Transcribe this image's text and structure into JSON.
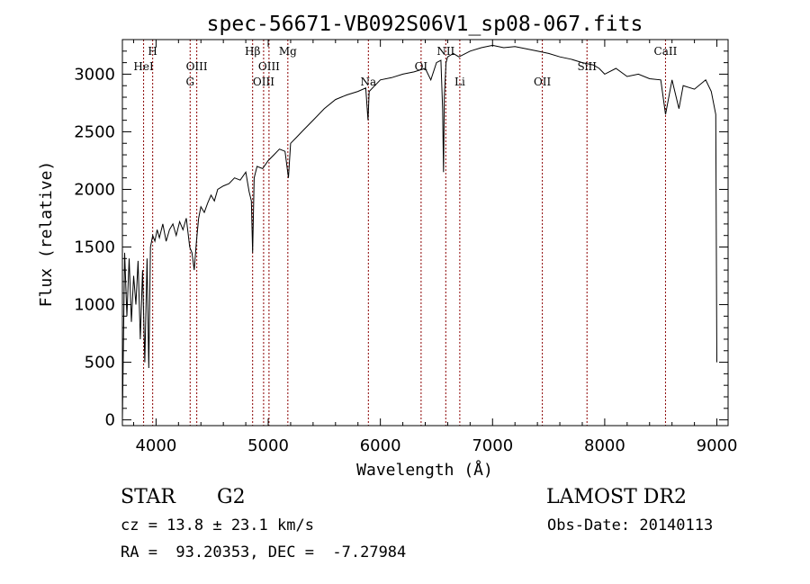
{
  "chart_data": {
    "type": "line",
    "title": "spec-56671-VB092S06V1_sp08-067.fits",
    "xlabel": "Wavelength (Å)",
    "ylabel": "Flux (relative)",
    "xlim": [
      3700,
      9100
    ],
    "ylim": [
      -50,
      3300
    ],
    "x_ticks": [
      4000,
      5000,
      6000,
      7000,
      8000,
      9000
    ],
    "y_ticks": [
      0,
      500,
      1000,
      1500,
      2000,
      2500,
      3000
    ],
    "grid": false,
    "line_color": "#000000",
    "marker_color": "#8b0000",
    "series": [
      {
        "x": [
          3700,
          3720,
          3740,
          3760,
          3780,
          3800,
          3820,
          3840,
          3860,
          3880,
          3900,
          3920,
          3935,
          3950,
          3970,
          3990,
          4010,
          4030,
          4060,
          4090,
          4120,
          4150,
          4180,
          4210,
          4240,
          4270,
          4300,
          4320,
          4340,
          4360,
          4380,
          4400,
          4430,
          4460,
          4490,
          4520,
          4550,
          4600,
          4650,
          4700,
          4750,
          4800,
          4830,
          4850,
          4861,
          4875,
          4900,
          4950,
          5000,
          5050,
          5100,
          5150,
          5180,
          5200,
          5250,
          5300,
          5400,
          5500,
          5600,
          5700,
          5800,
          5870,
          5890,
          5900,
          5950,
          6000,
          6100,
          6200,
          6300,
          6400,
          6450,
          6500,
          6540,
          6555,
          6563,
          6570,
          6585,
          6600,
          6650,
          6700,
          6800,
          6900,
          7000,
          7100,
          7200,
          7300,
          7400,
          7500,
          7600,
          7700,
          7800,
          7900,
          7950,
          8000,
          8100,
          8200,
          8300,
          8400,
          8500,
          8542,
          8600,
          8662,
          8700,
          8800,
          8900,
          8950,
          8990,
          9000
        ],
        "y": [
          0,
          1450,
          900,
          1400,
          850,
          1250,
          1000,
          1380,
          700,
          1300,
          500,
          1400,
          450,
          1500,
          1600,
          1550,
          1650,
          1580,
          1700,
          1550,
          1650,
          1700,
          1600,
          1720,
          1650,
          1750,
          1500,
          1450,
          1300,
          1550,
          1750,
          1850,
          1800,
          1880,
          1950,
          1900,
          2000,
          2030,
          2050,
          2100,
          2080,
          2150,
          1980,
          1900,
          1450,
          2100,
          2200,
          2180,
          2250,
          2300,
          2350,
          2330,
          2100,
          2400,
          2450,
          2500,
          2600,
          2700,
          2780,
          2820,
          2850,
          2880,
          2600,
          2850,
          2900,
          2950,
          2970,
          3000,
          3020,
          3050,
          2950,
          3100,
          3120,
          2700,
          2150,
          2800,
          3100,
          3150,
          3180,
          3150,
          3200,
          3230,
          3250,
          3230,
          3240,
          3220,
          3200,
          3180,
          3150,
          3130,
          3100,
          3080,
          3050,
          3000,
          3050,
          2980,
          3000,
          2960,
          2950,
          2650,
          2950,
          2700,
          2900,
          2870,
          2950,
          2850,
          2650,
          500
        ]
      }
    ],
    "lines": [
      {
        "label": "HeI",
        "x": 3889,
        "label_row": 2
      },
      {
        "label": "H",
        "x": 3970,
        "label_row": 1
      },
      {
        "label": "G",
        "x": 4304,
        "label_row": 3
      },
      {
        "label": "OIII",
        "x": 4363,
        "label_row": 2
      },
      {
        "label": "Hβ",
        "x": 4861,
        "label_row": 1
      },
      {
        "label": "OIII",
        "x": 4959,
        "label_row": 3
      },
      {
        "label": "OIII",
        "x": 5007,
        "label_row": 2
      },
      {
        "label": "Mg",
        "x": 5175,
        "label_row": 1
      },
      {
        "label": "Na",
        "x": 5893,
        "label_row": 3
      },
      {
        "label": "OI",
        "x": 6363,
        "label_row": 2
      },
      {
        "label": "NII",
        "x": 6583,
        "label_row": 1
      },
      {
        "label": "Li",
        "x": 6708,
        "label_row": 3
      },
      {
        "label": "OII",
        "x": 7444,
        "label_row": 3
      },
      {
        "label": "SiII",
        "x": 7842,
        "label_row": 2
      },
      {
        "label": "CaII",
        "x": 8542,
        "label_row": 1
      }
    ]
  },
  "info": {
    "class_label": "STAR",
    "subclass_label": "G2",
    "survey": "LAMOST DR2",
    "cz": "cz = 13.8 ± 23.1 km/s",
    "obs_date": "Obs-Date: 20140113",
    "coords": "RA =  93.20353, DEC =  -7.27984"
  }
}
